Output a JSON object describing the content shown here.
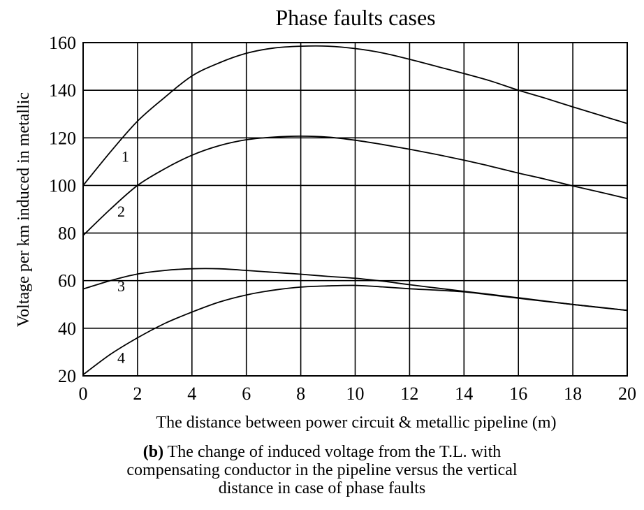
{
  "chart_data": {
    "type": "line",
    "title": "Phase faults cases",
    "xlabel": "The distance between power circuit & metallic pipeline (m)",
    "ylabel": "Voltage per km induced in metallic",
    "xlim": [
      0,
      20
    ],
    "ylim": [
      20,
      160
    ],
    "xticks": [
      0,
      2,
      4,
      6,
      8,
      10,
      12,
      14,
      16,
      18,
      20
    ],
    "yticks": [
      20,
      40,
      60,
      80,
      100,
      120,
      140,
      160
    ],
    "grid": true,
    "series": [
      {
        "name": "1",
        "x": [
          0,
          1,
          2,
          3,
          4,
          5,
          6,
          7,
          8,
          9,
          10,
          11,
          12,
          13,
          14,
          15,
          16,
          17,
          18,
          19,
          20
        ],
        "y": [
          100,
          114,
          127,
          137,
          146,
          151.5,
          155.5,
          157.7,
          158.5,
          158.5,
          157.5,
          155.7,
          153,
          150,
          147,
          143.8,
          140,
          136.6,
          133,
          129.5,
          126
        ]
      },
      {
        "name": "2",
        "x": [
          0,
          1,
          2,
          3,
          4,
          5,
          6,
          7,
          8,
          9,
          10,
          11,
          12,
          13,
          14,
          15,
          16,
          17,
          18,
          19,
          20
        ],
        "y": [
          79,
          90,
          100,
          107,
          112.7,
          116.7,
          119.2,
          120.3,
          120.7,
          120.3,
          119,
          117.2,
          115.2,
          113,
          110.6,
          108,
          105.2,
          102.6,
          99.8,
          97.2,
          94.5
        ]
      },
      {
        "name": "3",
        "x": [
          0,
          1,
          2,
          3,
          4,
          5,
          6,
          7,
          8,
          9,
          10,
          11,
          12,
          13,
          14,
          15,
          16,
          17,
          18,
          19,
          20
        ],
        "y": [
          56.5,
          60,
          62.8,
          64.3,
          65,
          65,
          64.3,
          63.5,
          62.7,
          61.8,
          61,
          59.8,
          58.3,
          56.9,
          55.5,
          54.2,
          52.8,
          51.4,
          50,
          48.8,
          47.5
        ]
      },
      {
        "name": "4",
        "x": [
          0,
          1,
          2,
          3,
          4,
          5,
          6,
          7,
          8,
          9,
          10,
          11,
          12,
          13,
          14,
          15,
          16,
          17,
          18,
          19,
          20
        ],
        "y": [
          20.5,
          29,
          36,
          42,
          46.8,
          51,
          54,
          56,
          57.3,
          57.8,
          58,
          57.4,
          56.6,
          56,
          55.3,
          54,
          52.6,
          51.3,
          50,
          48.7,
          47.5
        ]
      }
    ],
    "curve_labels": [
      {
        "text": "1",
        "x": 1.55,
        "y": 112
      },
      {
        "text": "2",
        "x": 1.4,
        "y": 89
      },
      {
        "text": "3",
        "x": 1.4,
        "y": 57.5
      },
      {
        "text": "4",
        "x": 1.4,
        "y": 27.5
      }
    ]
  },
  "caption": {
    "bold": "(b)",
    "line1": " The change of induced voltage from the T.L. with",
    "line2": "compensating conductor in the pipeline versus the vertical",
    "line3": "distance in case of phase faults"
  }
}
